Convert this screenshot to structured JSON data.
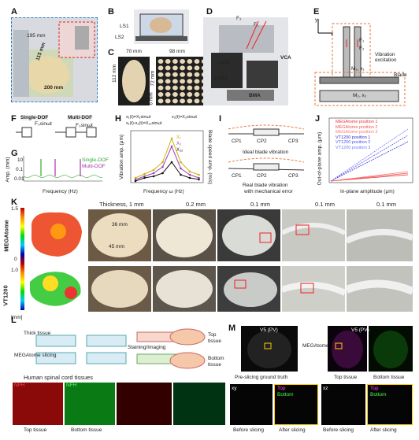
{
  "panels": {
    "A": {
      "label": "A",
      "dims": [
        "195 mm",
        "115 mm",
        "200 mm"
      ]
    },
    "B": {
      "label": "B",
      "ls1": "LS1",
      "ls2": "LS2"
    },
    "C": {
      "label": "C",
      "w1": "70 mm",
      "w2": "98 mm",
      "h1": "112 mm",
      "h2": "72 mm",
      "h3": "6 mm"
    },
    "D": {
      "label": "D",
      "f1": "F₁",
      "f2": "F₂",
      "lds1": "LDS1",
      "lds2": "LDS2",
      "vca": "VCA",
      "bma": "BMA"
    },
    "E": {
      "label": "E",
      "x": "x",
      "y": "y",
      "f1": "F₁",
      "f2": "F₂",
      "m1": "M₁, x₁",
      "m2": "M₂, x₂",
      "vib": "Vibration excitation",
      "blade": "Blade"
    },
    "F": {
      "label": "F",
      "single": "Single-DOF",
      "multi": "Multi-DOF",
      "eq1": "F₀sinωt",
      "eq2": "F₀sinωt"
    },
    "G": {
      "label": "G",
      "ylabel": "Amp. (mm)",
      "xlabel": "Frequency (Hz)",
      "leg1": "Single-DOF",
      "leg2": "Multi-DOF",
      "yticks": [
        "10",
        "0.1",
        "0.01"
      ],
      "xticks": [
        "0",
        "20",
        "40",
        "60",
        "80",
        "100",
        "120",
        "140",
        "160",
        "180",
        "200"
      ]
    },
    "H": {
      "label": "H",
      "ylabel": "Vibration amp. (μm)",
      "ylabel2": "Blade speed amp. (m/s)",
      "xlabel": "Frequency ω (Hz)",
      "eq1": "x₁(t)=X₁sinωt",
      "eq2": "x₂(t)=X₂sinωt",
      "eq3": "x₁(t)-x₂(t)=X₁₂sinωt",
      "leg": [
        "X₁",
        "X₂",
        "X₁₂"
      ],
      "yticks": [
        "800",
        "600",
        "400",
        "200",
        "0"
      ],
      "y2ticks": [
        "4",
        "3",
        "2",
        "1",
        "0"
      ],
      "xticks": [
        "20",
        "40",
        "60",
        "80",
        "100",
        "120",
        "140",
        "160"
      ]
    },
    "I": {
      "label": "I",
      "cp1": "CP1",
      "cp2": "CP2",
      "cp3": "CP3",
      "ideal": "Ideal blade vibration",
      "real": "Real blade vibration",
      "real2": "with mechanical error"
    },
    "J": {
      "label": "J",
      "ylabel": "Out-of-plane amp. (μm)",
      "xlabel": "In-plane amplitude (μm)",
      "legend": [
        "MEGAtome position 1",
        "MEGAtome position 2",
        "MEGAtome position 3",
        "VT1200 position 1",
        "VT1200 position 2",
        "VT1200 position 3"
      ],
      "yticks": [
        "50",
        "40",
        "30",
        "20",
        "10",
        "0"
      ],
      "xticks": [
        "0",
        "500",
        "1000",
        "1500",
        "2000",
        "2500"
      ]
    },
    "K": {
      "label": "K",
      "thick": "Thickness, 1 mm",
      "t2": "0.2 mm",
      "t3": "0.1 mm",
      "t4": "0.1 mm",
      "t5": "0.1 mm",
      "d1": "36 mm",
      "d2": "45 mm",
      "row1": "MEGAtome",
      "row2": "VT1200",
      "cb1": "1.5",
      "cb2": "0",
      "cb3": "1.0",
      "unit": "[mm]"
    },
    "L": {
      "label": "L",
      "thick": "Thick tissue",
      "slicing": "MEGAtome slicing",
      "stain": "Staining/Imaging",
      "top": "Top",
      "top2": "tissue",
      "bottom": "Bottom",
      "bottom2": "tissue",
      "human": "Human spinal cord tissues",
      "nfh1": "NFH",
      "nfh2": "NFH",
      "topt": "Top tissue",
      "bott": "Bottom tissue"
    },
    "M": {
      "label": "M",
      "v5a": "V5 (PV)",
      "v5b": "V5 (PV)",
      "arrow": "MEGAtome",
      "pre": "Pre-slicing ground truth",
      "toptissue": "Top tissue",
      "bottissue": "Bottom tissue",
      "xy": "xy",
      "xz": "xz",
      "top": "Top",
      "bottom": "Bottom",
      "before1": "Before slicing",
      "after1": "After slicing",
      "before2": "Before slicing",
      "after2": "After slicing"
    }
  }
}
